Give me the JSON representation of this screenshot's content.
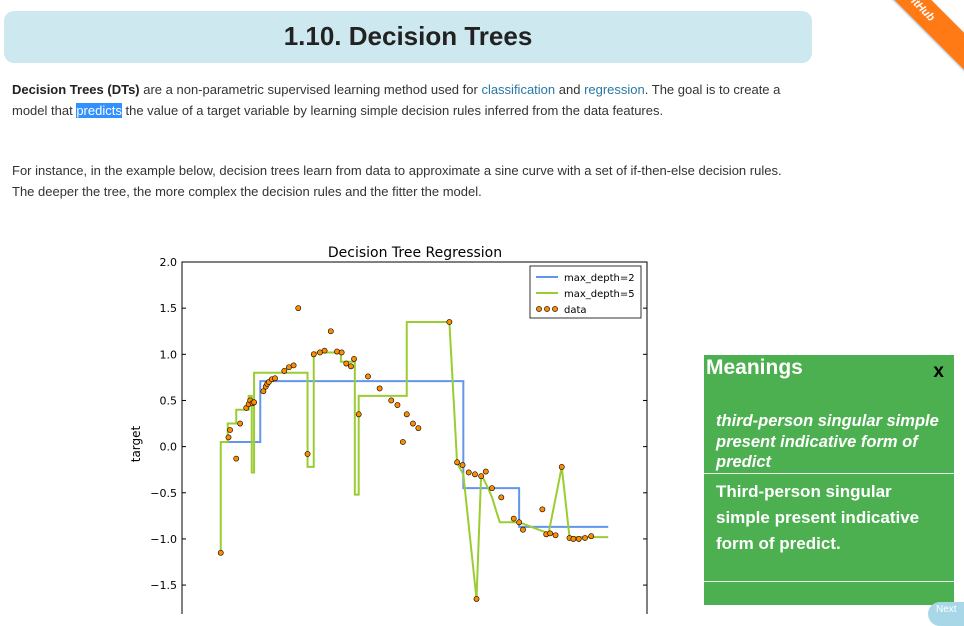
{
  "page": {
    "title": "1.10. Decision Trees",
    "ribbon_text": "itHub",
    "next_label": "Next"
  },
  "intro": {
    "p1_bold": "Decision Trees (DTs)",
    "p1_a": " are a non-parametric supervised learning method used for ",
    "p1_link1": "classification",
    "p1_b": " and ",
    "p1_link2": "regression",
    "p1_c": ". The goal is to create a model that ",
    "p1_highlight": "predicts",
    "p1_d": " the value of a target variable by learning simple decision rules inferred from the data features.",
    "p2": "For instance, in the example below, decision trees learn from data to approximate a sine curve with a set of if-then-else decision rules. The deeper the tree, the more complex the decision rules and the fitter the model."
  },
  "popup": {
    "header": "Meanings",
    "close": "x",
    "meaning1": "third-person singular simple present indicative form of predict",
    "meaning2": "Third-person singular simple present indicative form of predict."
  },
  "colors": {
    "link": "#2878a2",
    "title_bg": "#cde8ef",
    "popup_bg": "#4caf50",
    "depth2": "#6495ed",
    "depth5": "#9acd32",
    "data": "#ff8c00"
  },
  "chart_data": {
    "type": "line",
    "title": "Decision Tree Regression",
    "xlabel": "",
    "ylabel": "target",
    "xlim": [
      -0.5,
      5.5
    ],
    "ylim": [
      -1.9,
      2.0
    ],
    "yticks": [
      2.0,
      1.5,
      1.0,
      0.5,
      0.0,
      -0.5,
      -1.0,
      -1.5
    ],
    "ytick_labels": [
      "2.0",
      "1.5",
      "1.0",
      "0.5",
      "0.0",
      "−0.5",
      "−1.0",
      "−1.5"
    ],
    "legend_position": "top-right",
    "series": [
      {
        "name": "max_depth=2",
        "kind": "line",
        "color": "#6495ed",
        "x": [
          0.0,
          0.51,
          0.51,
          3.13,
          3.13,
          3.85,
          3.85,
          5.0
        ],
        "y": [
          0.05,
          0.05,
          0.71,
          0.71,
          -0.45,
          -0.45,
          -0.87,
          -0.87
        ]
      },
      {
        "name": "max_depth=5",
        "kind": "line",
        "color": "#9acd32",
        "x": [
          0.0,
          0.0,
          0.09,
          0.09,
          0.2,
          0.2,
          0.36,
          0.36,
          0.4,
          0.4,
          0.43,
          0.43,
          0.5,
          0.5,
          1.12,
          1.12,
          1.2,
          1.2,
          1.55,
          1.55,
          1.73,
          1.73,
          1.78,
          1.78,
          2.4,
          2.4,
          2.95,
          2.95,
          3.05,
          3.05,
          3.13,
          3.13,
          3.3,
          3.3,
          3.36,
          3.36,
          3.45,
          3.45,
          3.5,
          3.5,
          3.6,
          3.6,
          3.85,
          3.85,
          4.23,
          4.23,
          4.4,
          4.4,
          4.5,
          4.5,
          4.55,
          4.55,
          4.7,
          4.7,
          5.0
        ],
        "y": [
          -1.15,
          0.05,
          0.05,
          0.25,
          0.25,
          0.4,
          0.4,
          0.55,
          0.55,
          -0.28,
          -0.28,
          0.8,
          0.8,
          0.8,
          0.8,
          -0.22,
          -0.22,
          1.02,
          1.02,
          0.92,
          0.92,
          -0.52,
          -0.52,
          0.55,
          0.55,
          1.35,
          1.35,
          1.35,
          -0.18,
          -0.18,
          -0.3,
          -0.3,
          -1.65,
          -1.65,
          -0.3,
          -0.3,
          -0.45,
          -0.45,
          -0.55,
          -0.55,
          -0.82,
          -0.82,
          -0.82,
          -0.82,
          -0.94,
          -0.94,
          -0.22,
          -0.22,
          -0.98,
          -0.98,
          -0.98,
          -0.98,
          -0.98,
          -0.98,
          -0.98
        ]
      },
      {
        "name": "data",
        "kind": "scatter",
        "color": "#ff8c00",
        "x": [
          0.0,
          0.1,
          0.12,
          0.2,
          0.25,
          0.33,
          0.36,
          0.38,
          0.41,
          0.43,
          0.55,
          0.58,
          0.6,
          0.62,
          0.66,
          0.7,
          0.82,
          0.88,
          0.94,
          1.0,
          1.12,
          1.2,
          1.28,
          1.34,
          1.42,
          1.5,
          1.56,
          1.62,
          1.68,
          1.72,
          1.78,
          1.9,
          2.05,
          2.2,
          2.28,
          2.35,
          2.4,
          2.48,
          2.55,
          2.95,
          3.05,
          3.12,
          3.2,
          3.28,
          3.3,
          3.36,
          3.42,
          3.5,
          3.62,
          3.78,
          3.85,
          3.9,
          4.15,
          4.2,
          4.25,
          4.32,
          4.4,
          4.5,
          4.55,
          4.62,
          4.7,
          4.78
        ],
        "y": [
          -1.15,
          0.1,
          0.18,
          -0.13,
          0.25,
          0.42,
          0.46,
          0.5,
          0.47,
          0.48,
          0.6,
          0.65,
          0.68,
          0.7,
          0.73,
          0.74,
          0.82,
          0.86,
          0.88,
          1.5,
          -0.08,
          1.0,
          1.02,
          1.04,
          1.25,
          1.03,
          1.02,
          0.9,
          0.87,
          0.95,
          0.35,
          0.76,
          0.63,
          0.5,
          0.45,
          0.05,
          0.35,
          0.25,
          0.2,
          1.35,
          -0.17,
          -0.2,
          -0.28,
          -0.3,
          -1.65,
          -0.32,
          -0.27,
          -0.45,
          -0.55,
          -0.78,
          -0.82,
          -0.9,
          -0.68,
          -0.95,
          -0.94,
          -0.96,
          -0.22,
          -0.99,
          -1.0,
          -1.0,
          -0.99,
          -0.97
        ]
      }
    ]
  }
}
